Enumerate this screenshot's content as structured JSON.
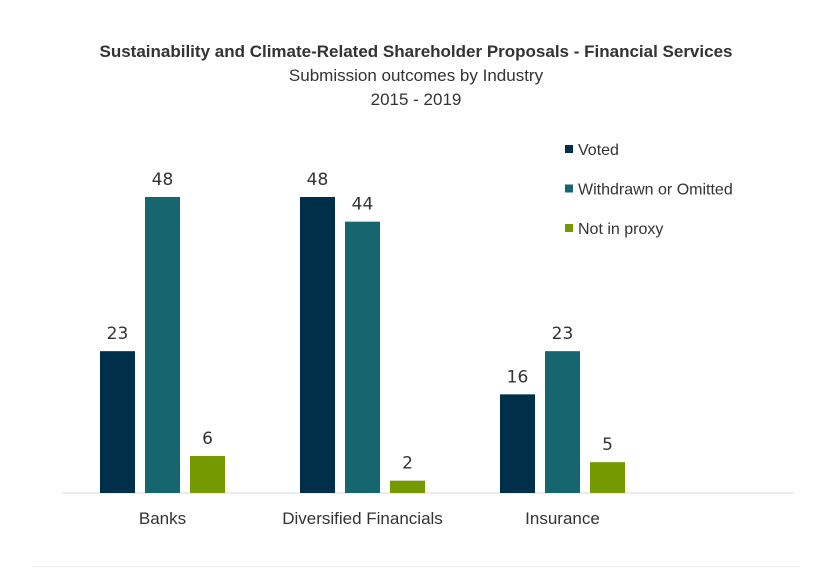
{
  "chart_data": {
    "type": "bar",
    "title": "Sustainability and Climate-Related Shareholder Proposals - Financial Services",
    "subtitle": "Submission outcomes by Industry",
    "period": "2015 - 2019",
    "categories": [
      "Banks",
      "Diversified Financials",
      "Insurance"
    ],
    "series": [
      {
        "name": "Voted",
        "values": [
          23,
          48,
          16
        ],
        "color": "#003049"
      },
      {
        "name": "Withdrawn or Omitted",
        "values": [
          48,
          44,
          23
        ],
        "color": "#15666F"
      },
      {
        "name": "Not in proxy",
        "values": [
          6,
          2,
          5
        ],
        "color": "#759A00"
      }
    ],
    "ylim": [
      0,
      48
    ],
    "grid": false,
    "legend": "top-right",
    "data_labels": true
  }
}
